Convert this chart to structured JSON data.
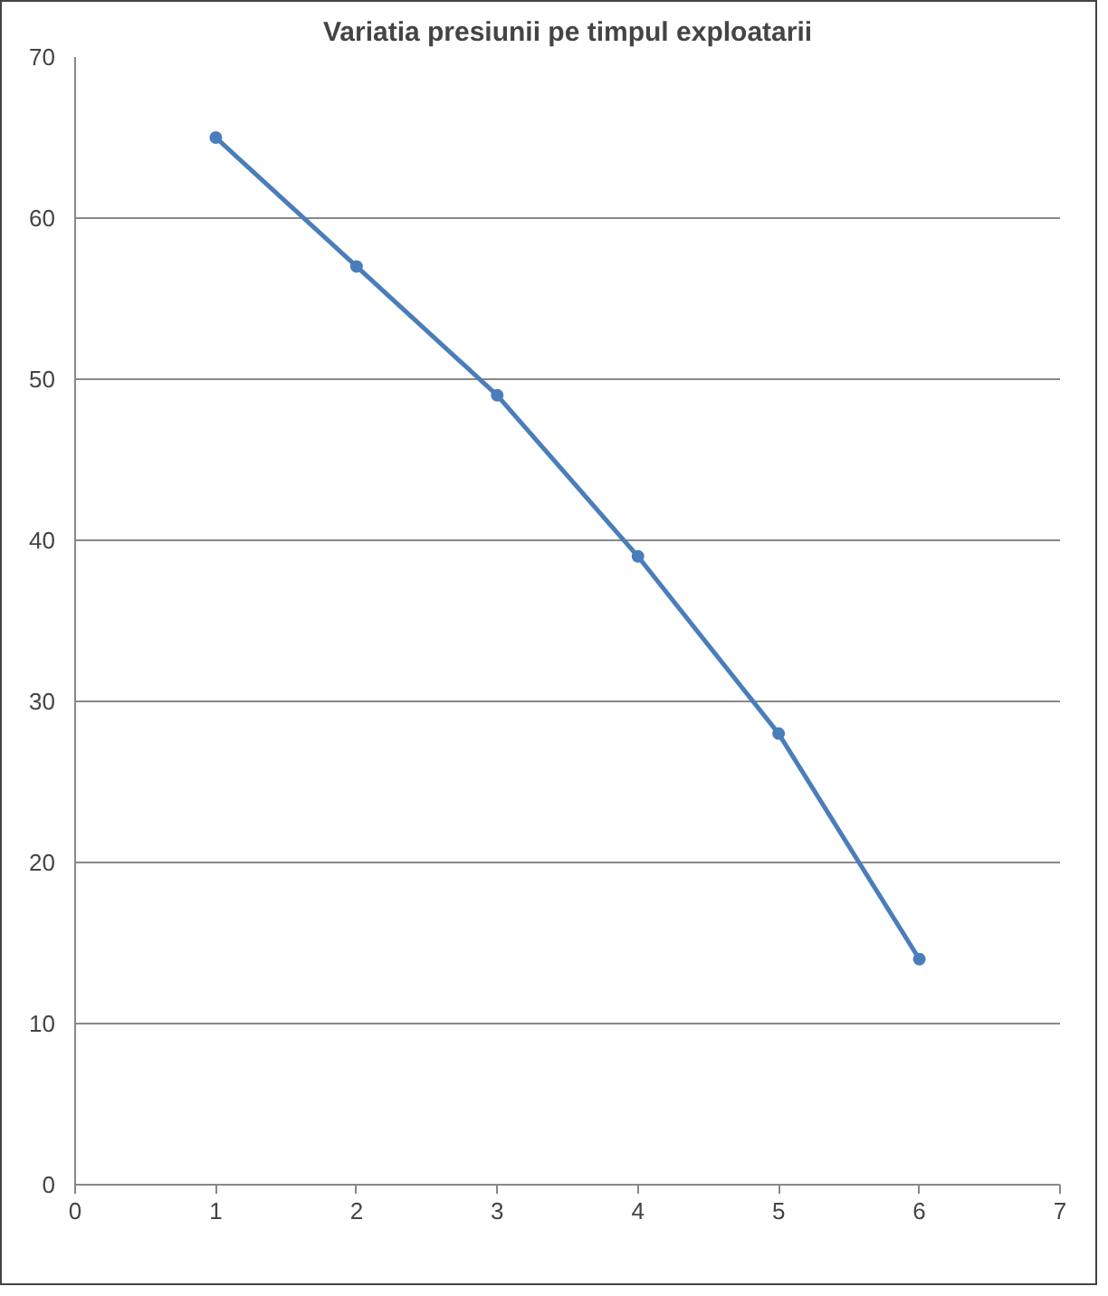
{
  "chart_data": {
    "type": "line",
    "title": "Variatia presiunii pe timpul exploatarii",
    "x": [
      1,
      2,
      3,
      4,
      5,
      6
    ],
    "series": [
      {
        "color": "#4a7ebb",
        "values": [
          65,
          57,
          49,
          39,
          28,
          14
        ]
      }
    ],
    "xlim": [
      0,
      7
    ],
    "xticks": [
      0,
      1,
      2,
      3,
      4,
      5,
      6,
      7
    ],
    "ylim": [
      0,
      70
    ],
    "yticks": [
      0,
      10,
      20,
      30,
      40,
      50,
      60,
      70
    ],
    "grid": "y",
    "marker": "circle",
    "line_style": "solid"
  }
}
